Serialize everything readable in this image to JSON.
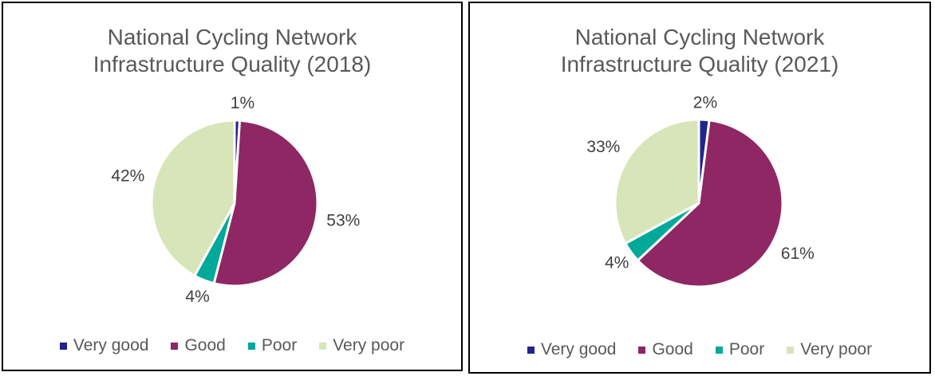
{
  "chart_data": [
    {
      "type": "pie",
      "title_lines": [
        "National Cycling Network",
        "Infrastructure Quality (2018)"
      ],
      "categories": [
        "Very good",
        "Good",
        "Poor",
        "Very poor"
      ],
      "values": [
        1,
        53,
        4,
        42
      ],
      "labels": [
        "1%",
        "53%",
        "4%",
        "42%"
      ],
      "legend": "bottom"
    },
    {
      "type": "pie",
      "title_lines": [
        "National Cycling Network",
        "Infrastructure Quality (2021)"
      ],
      "categories": [
        "Very good",
        "Good",
        "Poor",
        "Very poor"
      ],
      "values": [
        2,
        61,
        4,
        33
      ],
      "labels": [
        "2%",
        "61%",
        "4%",
        "33%"
      ],
      "legend": "bottom"
    }
  ],
  "colors": [
    "#23238c",
    "#8e2764",
    "#00a99a",
    "#d8e5b8"
  ]
}
